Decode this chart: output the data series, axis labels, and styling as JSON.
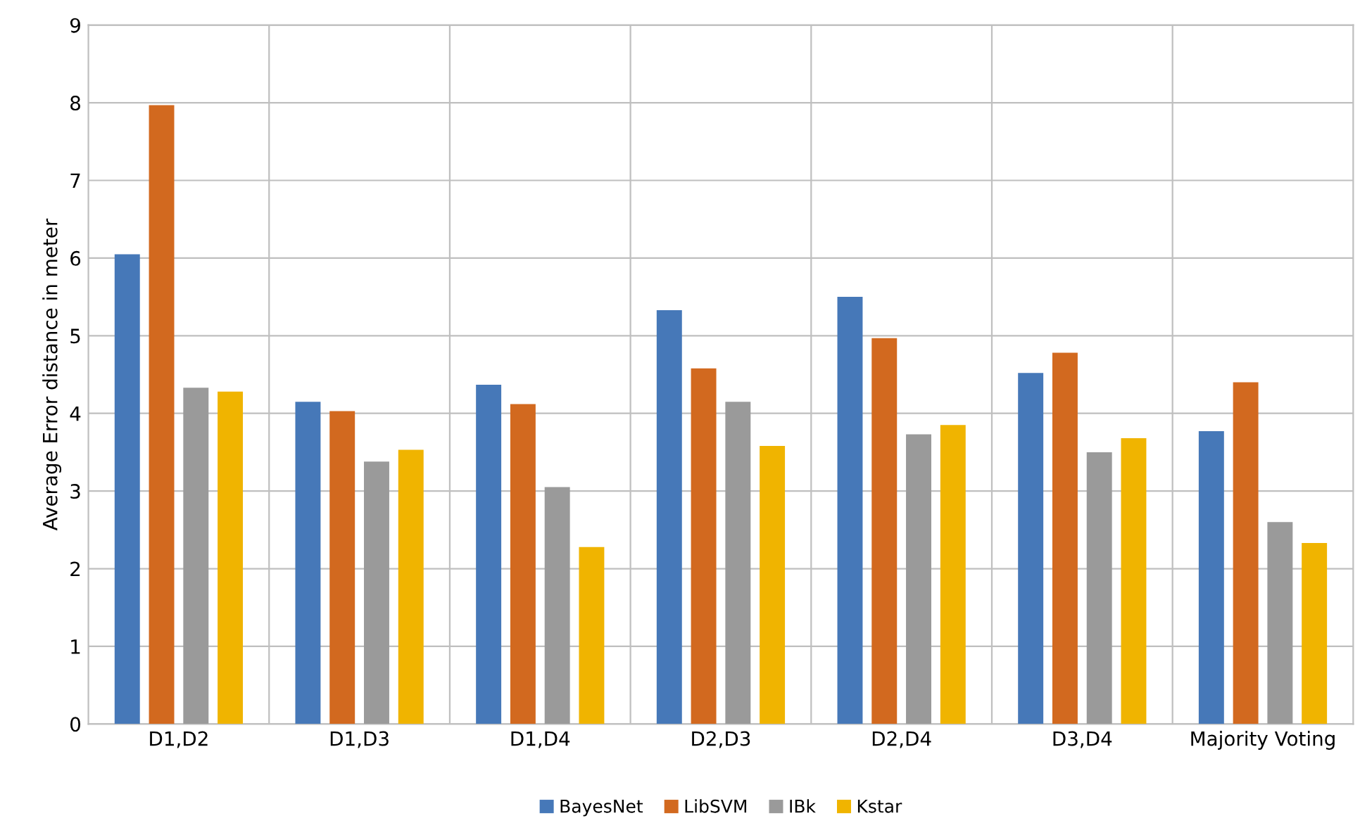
{
  "chart_data": {
    "type": "bar",
    "ylabel": "Average Error distance in meter",
    "categories": [
      "D1,D2",
      "D1,D3",
      "D1,D4",
      "D2,D3",
      "D2,D4",
      "D3,D4",
      "Majority Voting"
    ],
    "series": [
      {
        "name": "BayesNet",
        "color": "#4678b8",
        "values": [
          6.05,
          4.15,
          4.37,
          5.33,
          5.5,
          4.52,
          3.77
        ]
      },
      {
        "name": "LibSVM",
        "color": "#d2691f",
        "values": [
          7.97,
          4.03,
          4.12,
          4.58,
          4.97,
          4.78,
          4.4
        ]
      },
      {
        "name": "IBk",
        "color": "#9a9a9a",
        "values": [
          4.33,
          3.38,
          3.05,
          4.15,
          3.73,
          3.5,
          2.6
        ]
      },
      {
        "name": "Kstar",
        "color": "#f0b400",
        "values": [
          4.28,
          3.53,
          2.28,
          3.58,
          3.85,
          3.68,
          2.33
        ]
      }
    ],
    "ylim": [
      0,
      9
    ],
    "yticks": [
      0,
      1,
      2,
      3,
      4,
      5,
      6,
      7,
      8,
      9
    ],
    "grid": true,
    "legend": "bottom"
  }
}
